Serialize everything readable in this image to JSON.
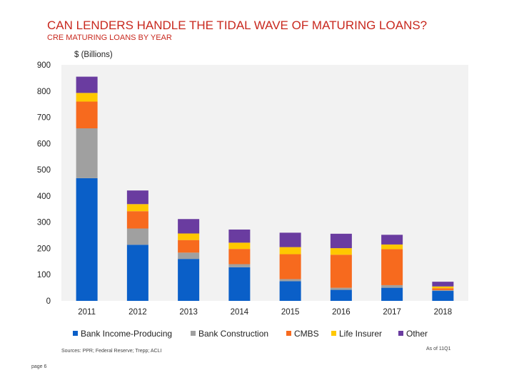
{
  "header": {
    "title": "CAN LENDERS HANDLE THE TIDAL WAVE OF MATURING LOANS?",
    "subtitle": "CRE MATURING LOANS BY YEAR"
  },
  "chart_data": {
    "type": "bar",
    "stacked": true,
    "title": "CRE MATURING LOANS BY YEAR",
    "ylabel": "$ (Billions)",
    "xlabel": "",
    "ylim": [
      0,
      900
    ],
    "yticks": [
      0,
      100,
      200,
      300,
      400,
      500,
      600,
      700,
      800,
      900
    ],
    "categories": [
      "2011",
      "2012",
      "2013",
      "2014",
      "2015",
      "2016",
      "2017",
      "2018"
    ],
    "series": [
      {
        "name": "Bank Income-Producing",
        "color": "#0a5fc8",
        "values": [
          468,
          214,
          160,
          128,
          75,
          42,
          50,
          38
        ]
      },
      {
        "name": "Bank Construction",
        "color": "#a0a0a0",
        "values": [
          190,
          62,
          24,
          12,
          8,
          8,
          10,
          3
        ]
      },
      {
        "name": "CMBS",
        "color": "#f76a1e",
        "values": [
          102,
          66,
          48,
          58,
          95,
          126,
          137,
          7
        ]
      },
      {
        "name": "Life Insurer",
        "color": "#ffc800",
        "values": [
          33,
          27,
          25,
          24,
          27,
          25,
          18,
          7
        ]
      },
      {
        "name": "Other",
        "color": "#6a3ca0",
        "values": [
          62,
          52,
          55,
          50,
          55,
          55,
          37,
          18
        ]
      }
    ],
    "grid": false,
    "legend_position": "bottom"
  },
  "footer": {
    "sources": "Sources: PPR; Federal Reserve; Trepp; ACLI",
    "as_of": "As of 11Q1",
    "page": "page 6"
  }
}
